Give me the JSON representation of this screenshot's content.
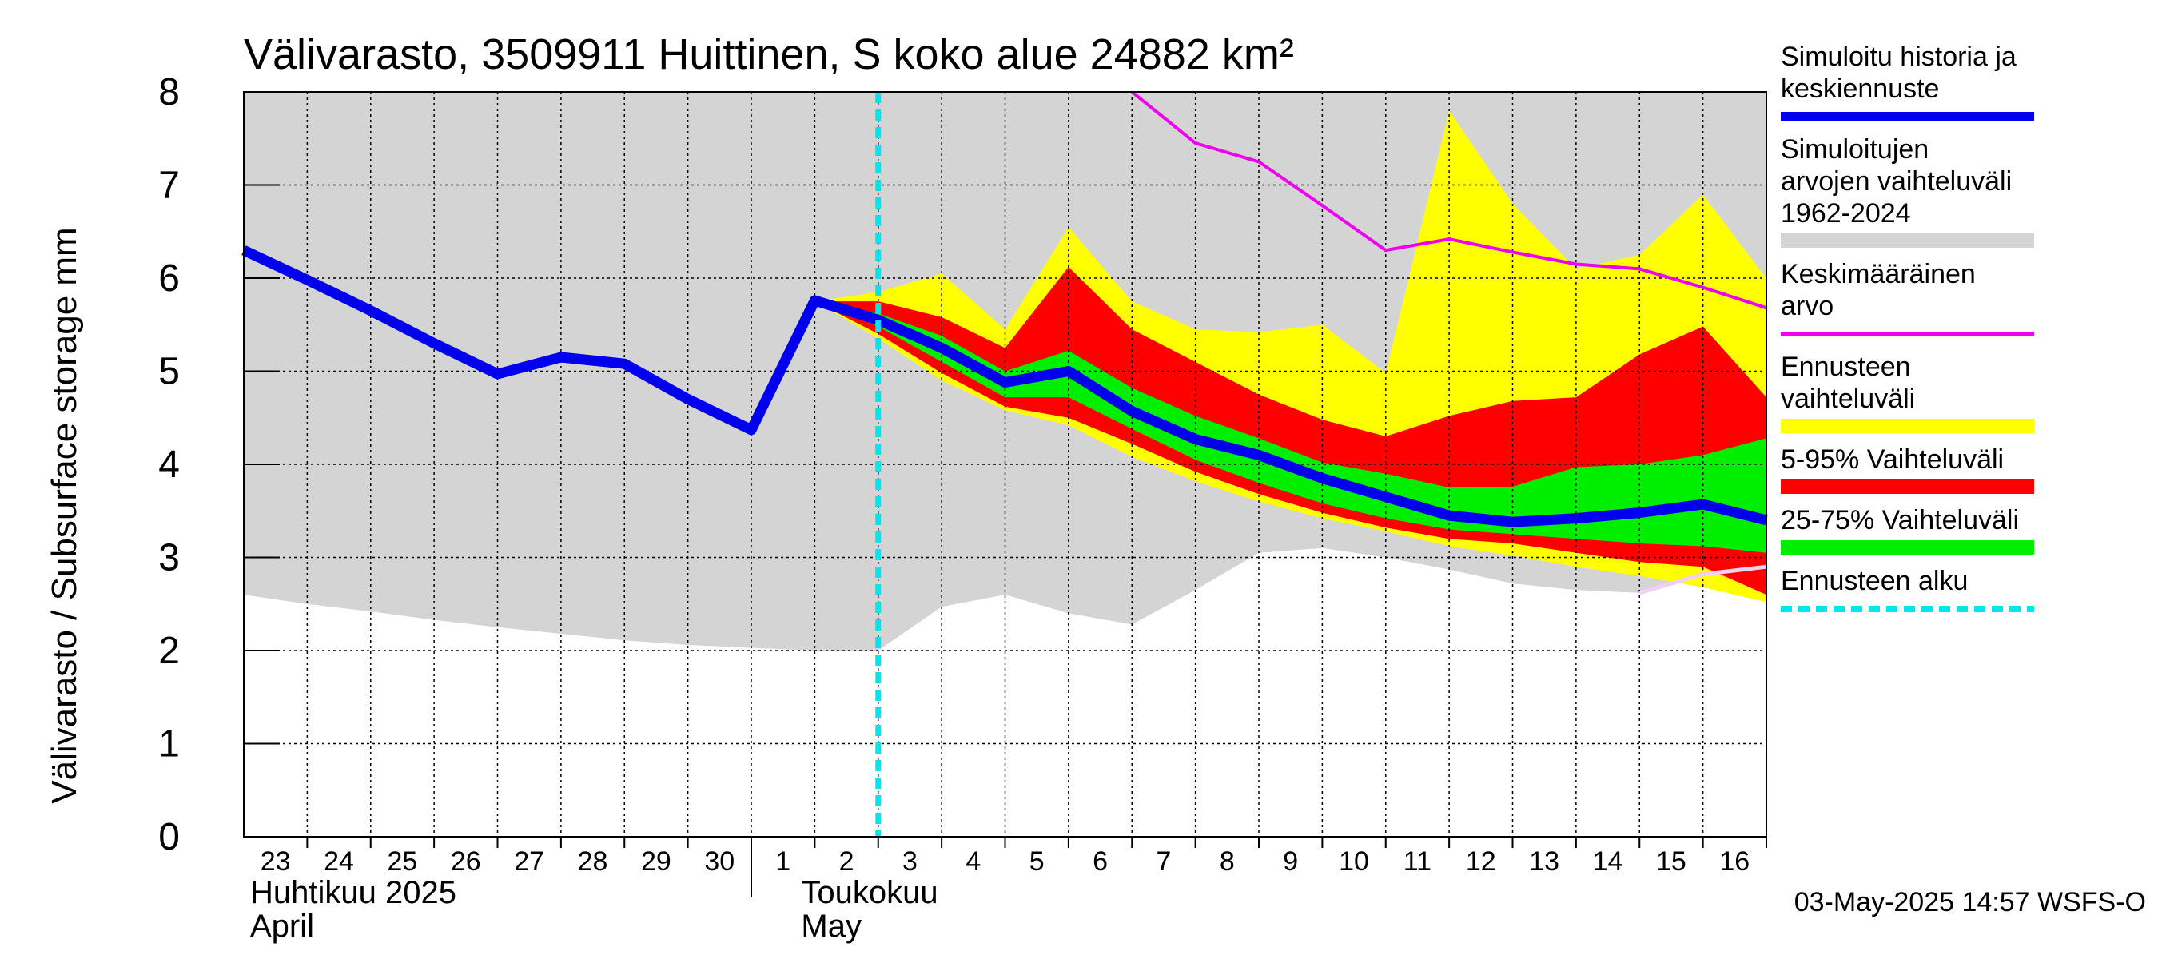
{
  "chart_data": {
    "type": "area",
    "title": "Välivarasto, 3509911 Huittinen, S koko alue 24882 km²",
    "ylabel": "Välivarasto / Subsurface storage  mm",
    "ylim": [
      0,
      8
    ],
    "yticks": [
      0,
      1,
      2,
      3,
      4,
      5,
      6,
      7,
      8
    ],
    "x_day_labels": [
      "23",
      "24",
      "25",
      "26",
      "27",
      "28",
      "29",
      "30",
      "1",
      "2",
      "3",
      "4",
      "5",
      "6",
      "7",
      "8",
      "9",
      "10",
      "11",
      "12",
      "13",
      "14",
      "15",
      "16"
    ],
    "x_dates": [
      "2025-04-23",
      "2025-04-24",
      "2025-04-25",
      "2025-04-26",
      "2025-04-27",
      "2025-04-28",
      "2025-04-29",
      "2025-04-30",
      "2025-05-01",
      "2025-05-02",
      "2025-05-03",
      "2025-05-04",
      "2025-05-05",
      "2025-05-06",
      "2025-05-07",
      "2025-05-08",
      "2025-05-09",
      "2025-05-10",
      "2025-05-11",
      "2025-05-12",
      "2025-05-13",
      "2025-05-14",
      "2025-05-15",
      "2025-05-16",
      "2025-05-17"
    ],
    "month_labels": [
      {
        "fi": "Huhtikuu  2025",
        "en": "April"
      },
      {
        "fi": "Toukokuu",
        "en": "May"
      }
    ],
    "forecast_start": "2025-05-03",
    "historical_range": {
      "x": [
        "2025-04-23",
        "2025-04-24",
        "2025-04-25",
        "2025-04-26",
        "2025-04-27",
        "2025-04-28",
        "2025-04-29",
        "2025-04-30",
        "2025-05-01",
        "2025-05-02",
        "2025-05-03",
        "2025-05-04",
        "2025-05-05",
        "2025-05-06",
        "2025-05-07",
        "2025-05-08",
        "2025-05-09",
        "2025-05-10",
        "2025-05-11",
        "2025-05-12",
        "2025-05-13",
        "2025-05-14",
        "2025-05-15",
        "2025-05-16",
        "2025-05-17"
      ],
      "upper": [
        8,
        8,
        8,
        8,
        8,
        8,
        8,
        8,
        8,
        8,
        8,
        8,
        8,
        8,
        8,
        8,
        8,
        8,
        8,
        8,
        8,
        8,
        8,
        8,
        8
      ],
      "lower": [
        2.6,
        2.5,
        2.42,
        2.33,
        2.25,
        2.18,
        2.11,
        2.06,
        2.03,
        2.0,
        2.0,
        2.47,
        2.6,
        2.4,
        2.28,
        2.65,
        3.05,
        3.1,
        3.0,
        2.87,
        2.72,
        2.65,
        2.62,
        2.8,
        2.88
      ]
    },
    "forecast_range": {
      "x": [
        "2025-05-02",
        "2025-05-03",
        "2025-05-04",
        "2025-05-05",
        "2025-05-06",
        "2025-05-07",
        "2025-05-08",
        "2025-05-09",
        "2025-05-10",
        "2025-05-11",
        "2025-05-12",
        "2025-05-13",
        "2025-05-14",
        "2025-05-15",
        "2025-05-16",
        "2025-05-17"
      ],
      "upper": [
        5.75,
        5.85,
        6.05,
        5.45,
        6.55,
        5.75,
        5.45,
        5.42,
        5.5,
        4.98,
        7.8,
        6.8,
        6.1,
        6.25,
        6.9,
        6.0
      ],
      "lower": [
        5.75,
        5.35,
        4.9,
        4.58,
        4.42,
        4.08,
        3.82,
        3.6,
        3.42,
        3.28,
        3.12,
        3.02,
        2.9,
        2.8,
        2.68,
        2.52
      ]
    },
    "band_5_95": {
      "x": [
        "2025-05-02",
        "2025-05-03",
        "2025-05-04",
        "2025-05-05",
        "2025-05-06",
        "2025-05-07",
        "2025-05-08",
        "2025-05-09",
        "2025-05-10",
        "2025-05-11",
        "2025-05-12",
        "2025-05-13",
        "2025-05-14",
        "2025-05-15",
        "2025-05-16",
        "2025-05-17"
      ],
      "upper": [
        5.75,
        5.75,
        5.58,
        5.25,
        6.12,
        5.45,
        5.1,
        4.75,
        4.48,
        4.3,
        4.52,
        4.68,
        4.72,
        5.18,
        5.48,
        4.72
      ],
      "lower": [
        5.75,
        5.4,
        4.98,
        4.62,
        4.5,
        4.22,
        3.92,
        3.68,
        3.48,
        3.32,
        3.2,
        3.15,
        3.05,
        2.95,
        2.9,
        2.6
      ]
    },
    "band_25_75": {
      "x": [
        "2025-05-02",
        "2025-05-03",
        "2025-05-04",
        "2025-05-05",
        "2025-05-06",
        "2025-05-07",
        "2025-05-08",
        "2025-05-09",
        "2025-05-10",
        "2025-05-11",
        "2025-05-12",
        "2025-05-13",
        "2025-05-14",
        "2025-05-15",
        "2025-05-16",
        "2025-05-17"
      ],
      "upper": [
        5.75,
        5.62,
        5.38,
        5.0,
        5.22,
        4.82,
        4.52,
        4.28,
        4.02,
        3.9,
        3.75,
        3.76,
        3.97,
        4.0,
        4.1,
        4.28
      ],
      "lower": [
        5.75,
        5.48,
        5.1,
        4.72,
        4.72,
        4.38,
        4.05,
        3.8,
        3.58,
        3.42,
        3.3,
        3.25,
        3.2,
        3.15,
        3.12,
        3.05
      ]
    },
    "mean_value": {
      "x": [
        "2025-05-07",
        "2025-05-08",
        "2025-05-09",
        "2025-05-10",
        "2025-05-11",
        "2025-05-12",
        "2025-05-13",
        "2025-05-14",
        "2025-05-15",
        "2025-05-16",
        "2025-05-17"
      ],
      "y": [
        8.0,
        7.45,
        7.25,
        6.78,
        6.3,
        6.42,
        6.28,
        6.15,
        6.1,
        5.9,
        5.68
      ]
    },
    "median_line": {
      "x": [
        "2025-04-23",
        "2025-04-24",
        "2025-04-25",
        "2025-04-26",
        "2025-04-27",
        "2025-04-28",
        "2025-04-29",
        "2025-04-30",
        "2025-05-01",
        "2025-05-02",
        "2025-05-03",
        "2025-05-04",
        "2025-05-05",
        "2025-05-06",
        "2025-05-07",
        "2025-05-08",
        "2025-05-09",
        "2025-05-10",
        "2025-05-11",
        "2025-05-12",
        "2025-05-13",
        "2025-05-14",
        "2025-05-15",
        "2025-05-16",
        "2025-05-17"
      ],
      "y": [
        6.3,
        5.98,
        5.65,
        5.3,
        4.97,
        5.15,
        5.08,
        4.7,
        4.37,
        5.76,
        5.55,
        5.25,
        4.88,
        5.0,
        4.57,
        4.27,
        4.1,
        3.85,
        3.65,
        3.45,
        3.38,
        3.42,
        3.48,
        3.57,
        3.4
      ]
    },
    "tail_line": {
      "x": [
        "2025-05-15",
        "2025-05-16",
        "2025-05-17"
      ],
      "y": [
        2.62,
        2.82,
        2.9
      ]
    },
    "legend": [
      {
        "label": "Simuloitu historia ja keskiennuste",
        "color": "#0000ee",
        "style": "line"
      },
      {
        "label": "Simuloitujen arvojen vaihteluväli 1962-2024",
        "color": "#d4d4d4",
        "style": "band"
      },
      {
        "label": "Keskimääräinen arvo",
        "color": "#ee00ee",
        "style": "line"
      },
      {
        "label": "Ennusteen vaihteluväli",
        "color": "#ffff00",
        "style": "band"
      },
      {
        "label": "5-95% Vaihteluväli",
        "color": "#ff0000",
        "style": "band"
      },
      {
        "label": "25-75% Vaihteluväli",
        "color": "#00ee00",
        "style": "band"
      },
      {
        "label": "Ennusteen alku",
        "color": "#00e5ee",
        "style": "dashed"
      }
    ],
    "grid": true,
    "legend_position": "right",
    "timestamp": "03-May-2025 14:57 WSFS-O"
  }
}
